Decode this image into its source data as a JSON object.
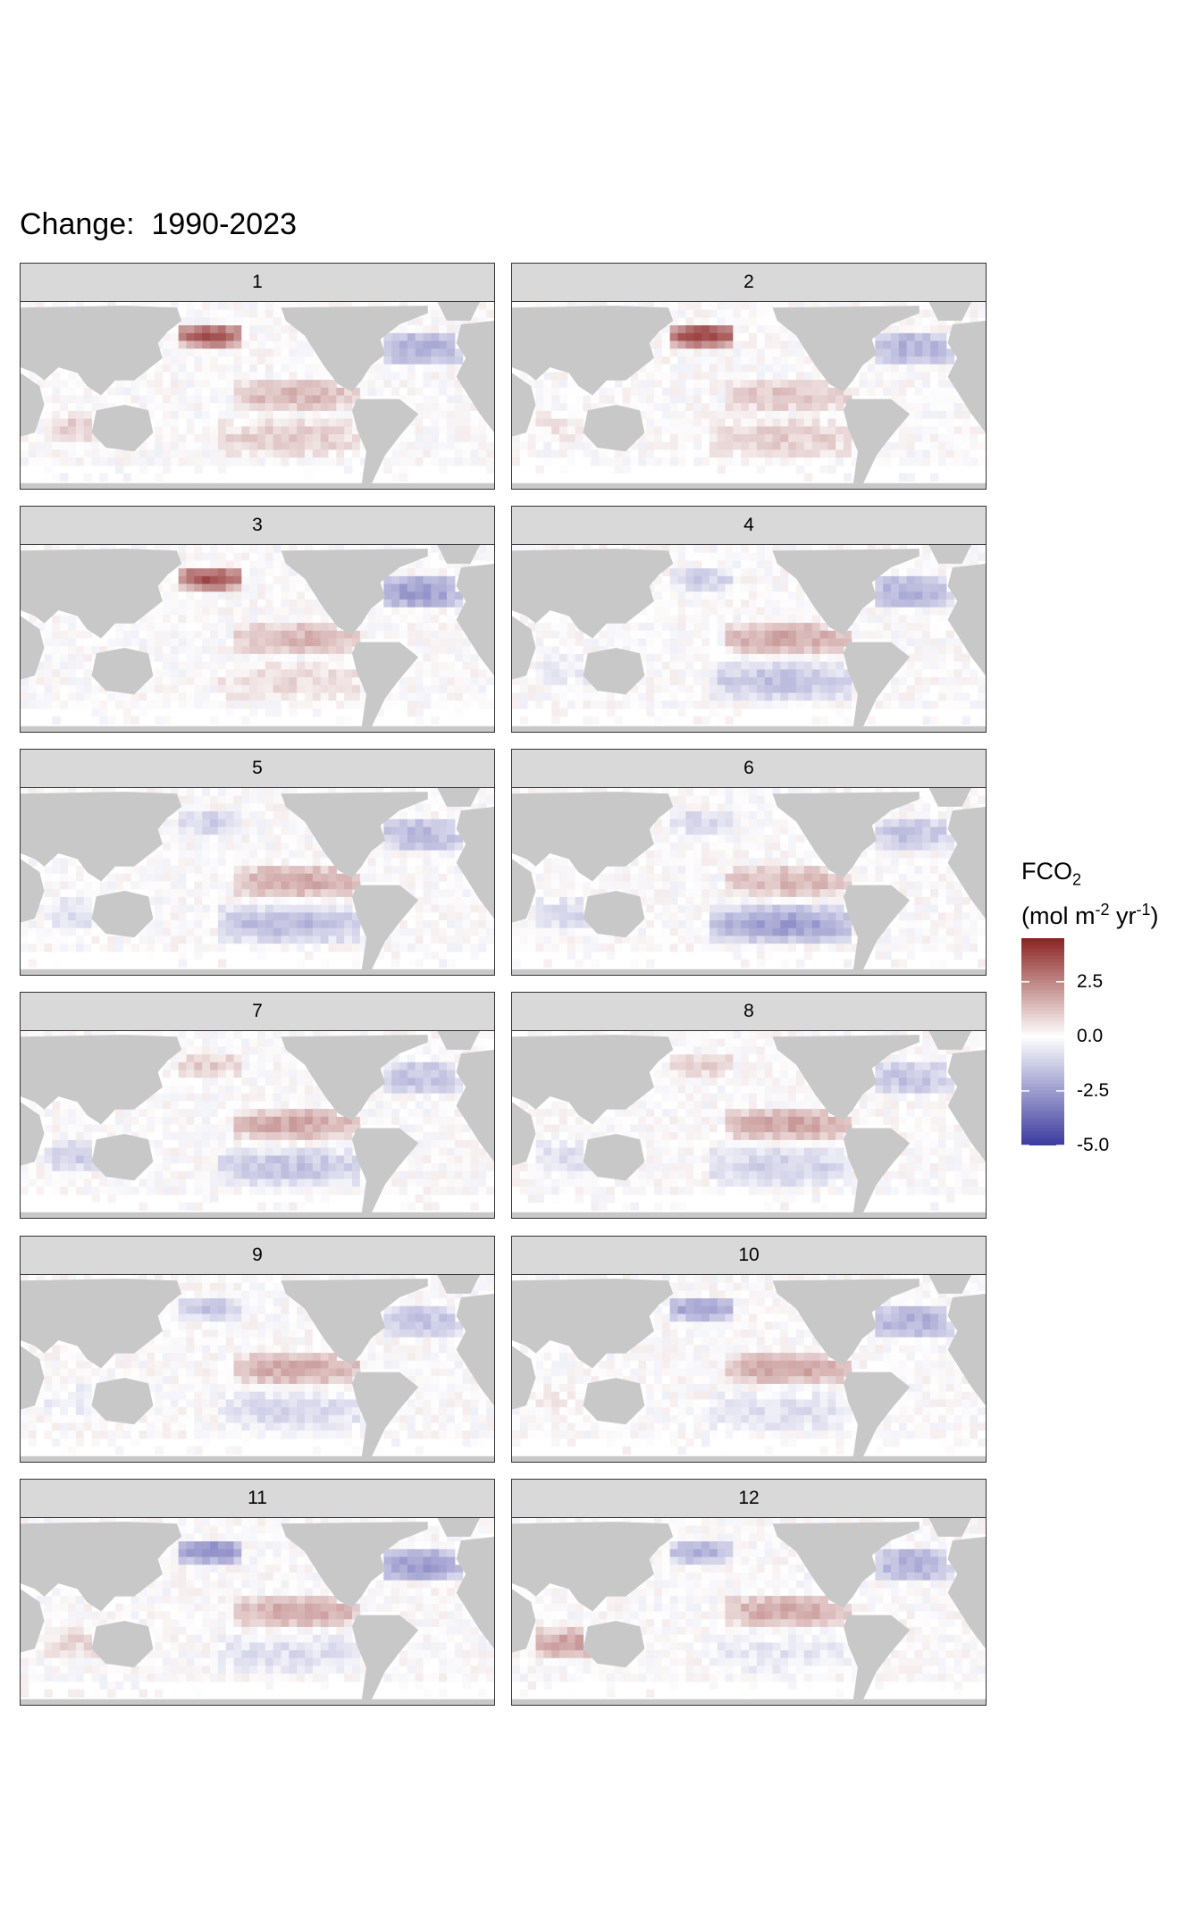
{
  "title": "Change:  1990-2023",
  "chart_data": {
    "type": "heatmap",
    "title": "Change:  1990-2023",
    "facets": [
      "1",
      "2",
      "3",
      "4",
      "5",
      "6",
      "7",
      "8",
      "9",
      "10",
      "11",
      "12"
    ],
    "legend": {
      "title_main": "FCO",
      "title_sub": "2",
      "units_prefix": "(mol m",
      "units_exp1": "-2",
      "units_mid": " yr",
      "units_exp2": "-1",
      "units_suffix": ")",
      "ticks": [
        "2.5",
        "0.0",
        "-2.5",
        "-5.0"
      ],
      "tick_values": [
        2.5,
        0.0,
        -2.5,
        -5.0
      ],
      "range": [
        -5.0,
        4.5
      ],
      "placement": "right",
      "colors": {
        "high": "#8b2323",
        "mid": "#ffffff",
        "low": "#3b3a9e"
      }
    },
    "land_color": "#c8c8c8",
    "notes_features": {
      "1": {
        "nw_pacific": 3.5,
        "eq_pacific": 1.5,
        "n_atlantic": -2.0,
        "s_pacific": 1.0,
        "indian": 1.0
      },
      "2": {
        "nw_pacific": 4.0,
        "eq_pacific": 1.2,
        "n_atlantic": -2.0,
        "s_pacific": 1.0,
        "indian": 0.5
      },
      "3": {
        "nw_pacific": 3.5,
        "eq_pacific": 1.5,
        "n_atlantic": -2.5,
        "s_pacific": 0.8,
        "indian": 0.0
      },
      "4": {
        "nw_pacific": -1.2,
        "eq_pacific": 1.8,
        "n_atlantic": -2.0,
        "s_pacific": -1.5,
        "indian": -0.5
      },
      "5": {
        "nw_pacific": -1.2,
        "eq_pacific": 1.8,
        "n_atlantic": -1.8,
        "s_pacific": -1.8,
        "indian": -0.8
      },
      "6": {
        "nw_pacific": -1.0,
        "eq_pacific": 1.5,
        "n_atlantic": -1.5,
        "s_pacific": -2.5,
        "indian": -1.0
      },
      "7": {
        "nw_pacific": 1.0,
        "eq_pacific": 1.8,
        "n_atlantic": -1.5,
        "s_pacific": -1.5,
        "indian": -1.2
      },
      "8": {
        "nw_pacific": 1.0,
        "eq_pacific": 1.8,
        "n_atlantic": -1.5,
        "s_pacific": -1.2,
        "indian": -0.8
      },
      "9": {
        "nw_pacific": -1.5,
        "eq_pacific": 1.8,
        "n_atlantic": -1.5,
        "s_pacific": -1.0,
        "indian": -0.5
      },
      "10": {
        "nw_pacific": -2.5,
        "eq_pacific": 1.8,
        "n_atlantic": -2.0,
        "s_pacific": -0.8,
        "indian": 0.3
      },
      "11": {
        "nw_pacific": -3.0,
        "eq_pacific": 1.8,
        "n_atlantic": -2.5,
        "s_pacific": -0.8,
        "indian": 0.8
      },
      "12": {
        "nw_pacific": -2.0,
        "eq_pacific": 1.8,
        "n_atlantic": -2.0,
        "s_pacific": -0.6,
        "indian": 2.0
      }
    }
  }
}
